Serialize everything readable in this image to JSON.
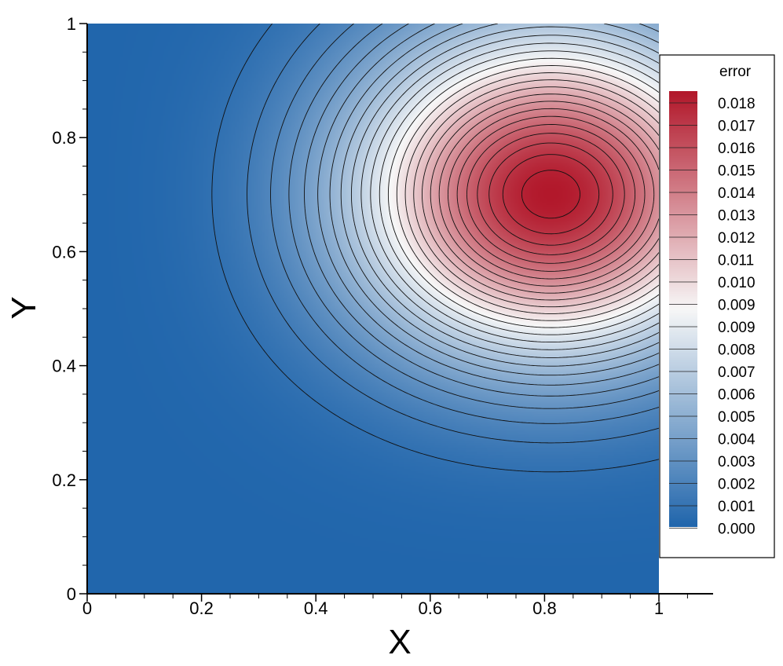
{
  "chart_data": {
    "type": "heatmap",
    "subtype": "filled contour with contour lines",
    "title": "",
    "xlabel": "X",
    "ylabel": "Y",
    "xlim": [
      0,
      1
    ],
    "ylim": [
      0,
      1
    ],
    "x_ticks": [
      "0",
      "0.2",
      "0.4",
      "0.6",
      "0.8",
      "1"
    ],
    "y_ticks": [
      "0",
      "0.2",
      "0.4",
      "0.6",
      "0.8",
      "1"
    ],
    "x_tick_values": [
      0,
      0.2,
      0.4,
      0.6,
      0.8,
      1
    ],
    "y_tick_values": [
      0,
      0.2,
      0.4,
      0.6,
      0.8,
      1
    ],
    "field": {
      "variable": "error",
      "min": 0.0,
      "max": 0.0188,
      "peak": {
        "x": 0.85,
        "y": 0.67,
        "value": 0.0188
      },
      "zero_on_boundaries": [
        "x=0",
        "y=0"
      ]
    },
    "contour_count": 26,
    "colormap": {
      "low": "#2166ac",
      "mid": "#f7f7f7",
      "high": "#b2182b"
    },
    "legend": {
      "title": "error",
      "placement": "right",
      "levels": [
        "0.018",
        "0.017",
        "0.016",
        "0.015",
        "0.014",
        "0.013",
        "0.012",
        "0.011",
        "0.010",
        "0.009",
        "0.009",
        "0.008",
        "0.007",
        "0.006",
        "0.005",
        "0.004",
        "0.003",
        "0.002",
        "0.001",
        "0.000"
      ]
    },
    "grid": false
  }
}
